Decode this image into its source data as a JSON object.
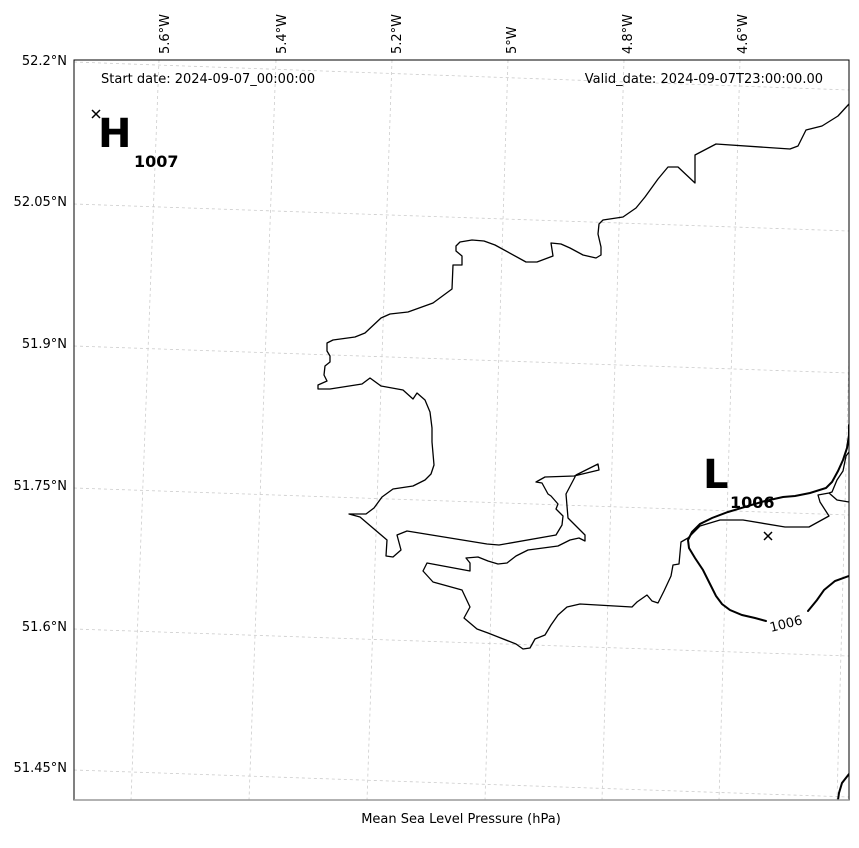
{
  "header": {
    "start_date": "Start date: 2024-09-07_00:00:00",
    "valid_date": "Valid_date: 2024-09-07T23:00:00.00"
  },
  "longitude_ticks": [
    "5.6°W",
    "5.4°W",
    "5.2°W",
    "5°W",
    "4.8°W",
    "4.6°W"
  ],
  "latitude_ticks": [
    "52.2°N",
    "52.05°N",
    "51.9°N",
    "51.75°N",
    "51.6°N",
    "51.45°N"
  ],
  "pressure_centers": [
    {
      "type": "high",
      "letter": "H",
      "value": "1007"
    },
    {
      "type": "low",
      "letter": "L",
      "value": "1006"
    }
  ],
  "isobars": [
    {
      "label": "1006"
    }
  ],
  "caption": "Mean Sea Level Pressure (hPa)"
}
